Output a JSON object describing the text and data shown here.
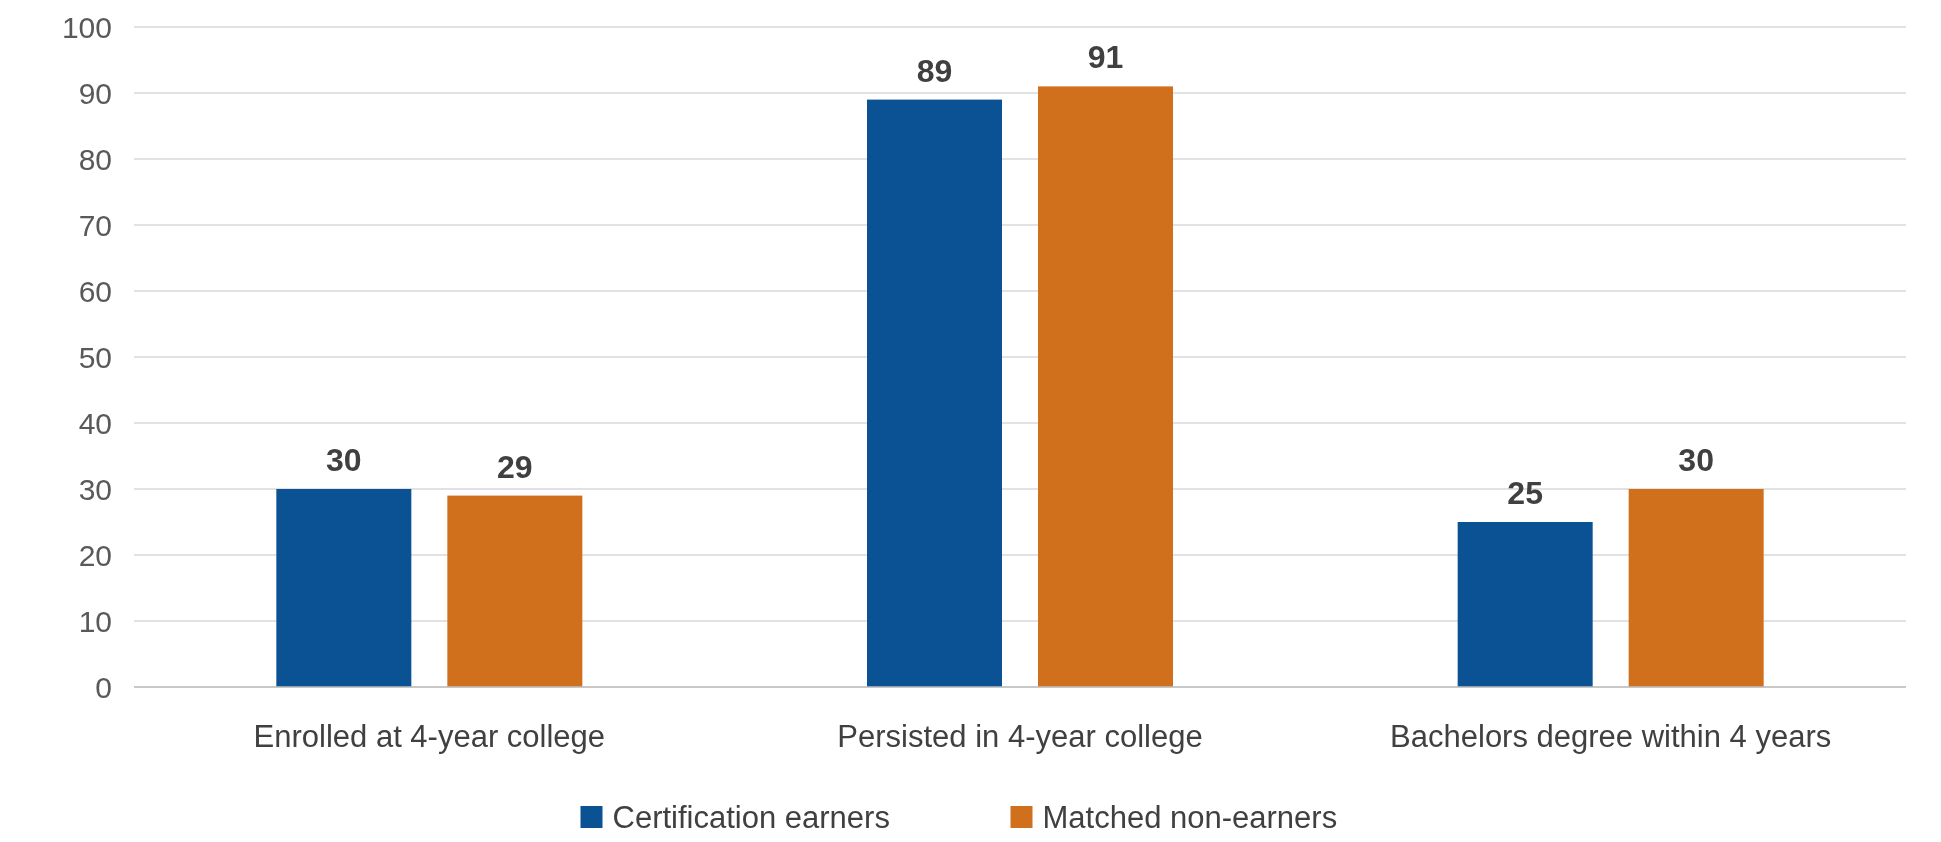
{
  "chart_data": {
    "type": "bar",
    "categories": [
      "Enrolled at 4-year college",
      "Persisted in 4-year college",
      "Bachelors degree within 4 years"
    ],
    "series": [
      {
        "name": "Certification earners",
        "color": "#0a5294",
        "values": [
          30,
          89,
          25
        ]
      },
      {
        "name": "Matched non-earners",
        "color": "#d0701c",
        "values": [
          29,
          91,
          30
        ]
      }
    ],
    "ylim": [
      0,
      100
    ],
    "yticks": [
      0,
      10,
      20,
      30,
      40,
      50,
      60,
      70,
      80,
      90,
      100
    ],
    "grid": "y",
    "legend": "bottom",
    "data_labels": true
  }
}
